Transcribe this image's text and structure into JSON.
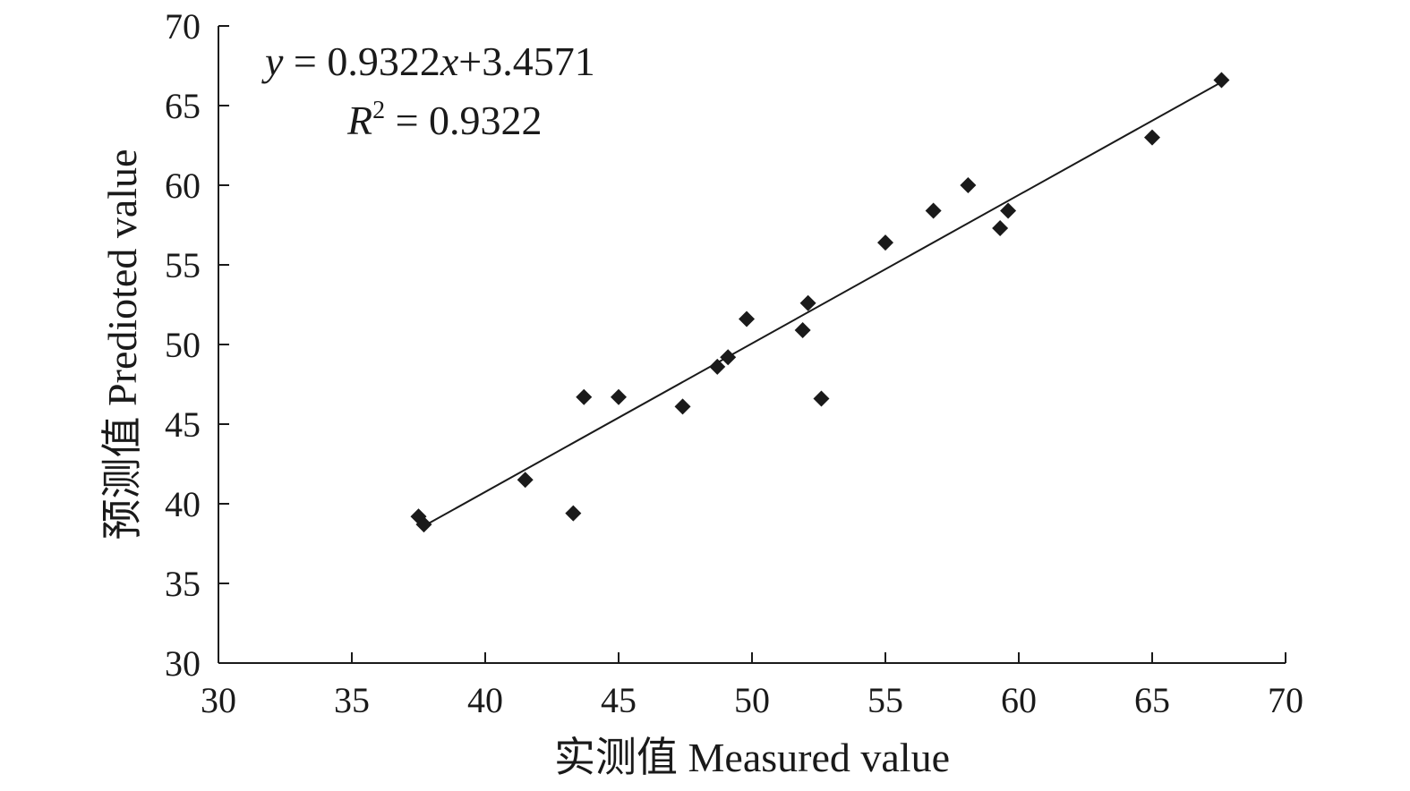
{
  "chart_data": {
    "type": "scatter",
    "xlabel": "实测值 Measured value",
    "ylabel": "预测值 Prediοted value",
    "xlim": [
      30,
      70
    ],
    "ylim": [
      30,
      70
    ],
    "xticks": [
      30,
      35,
      40,
      45,
      50,
      55,
      60,
      65,
      70
    ],
    "yticks": [
      30,
      35,
      40,
      45,
      50,
      55,
      60,
      65,
      70
    ],
    "tick_labels_x": [
      "30",
      "35",
      "40",
      "45",
      "50",
      "55",
      "60",
      "65",
      "70"
    ],
    "tick_labels_y": [
      "30",
      "35",
      "40",
      "45",
      "50",
      "55",
      "60",
      "65",
      "70"
    ],
    "grid": false,
    "marker": "diamond",
    "marker_color": "#1a1a1a",
    "points": [
      {
        "x": 37.5,
        "y": 39.2
      },
      {
        "x": 37.7,
        "y": 38.7
      },
      {
        "x": 41.5,
        "y": 41.5
      },
      {
        "x": 43.3,
        "y": 39.4
      },
      {
        "x": 43.7,
        "y": 46.7
      },
      {
        "x": 45.0,
        "y": 46.7
      },
      {
        "x": 47.4,
        "y": 46.1
      },
      {
        "x": 48.7,
        "y": 48.6
      },
      {
        "x": 49.1,
        "y": 49.2
      },
      {
        "x": 49.8,
        "y": 51.6
      },
      {
        "x": 51.9,
        "y": 50.9
      },
      {
        "x": 52.1,
        "y": 52.6
      },
      {
        "x": 52.6,
        "y": 46.6
      },
      {
        "x": 55.0,
        "y": 56.4
      },
      {
        "x": 56.8,
        "y": 58.4
      },
      {
        "x": 58.1,
        "y": 60.0
      },
      {
        "x": 59.3,
        "y": 57.3
      },
      {
        "x": 59.6,
        "y": 58.4
      },
      {
        "x": 65.0,
        "y": 63.0
      },
      {
        "x": 67.6,
        "y": 66.6
      }
    ],
    "fit_line": {
      "slope": 0.9322,
      "intercept": 3.4571,
      "x_range": [
        37.7,
        67.6
      ]
    },
    "annotations": {
      "equation_y": "y",
      "equation_eq": " = 0.9322",
      "equation_x": "x",
      "equation_rest": "+3.4571",
      "r2_label": "R",
      "r2_sup": "2",
      "r2_value": " = 0.9322"
    }
  }
}
